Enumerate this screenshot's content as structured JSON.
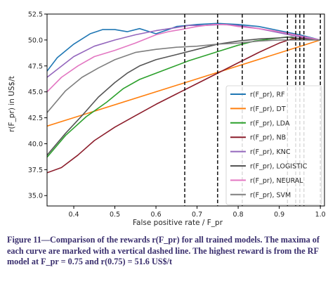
{
  "chart_data": {
    "type": "line",
    "xlabel": "False positive rate / F_pr",
    "ylabel": "r(F_pr) in US$/t",
    "xlim": [
      0.335,
      1.01
    ],
    "ylim": [
      34.0,
      52.5
    ],
    "xticks": [
      0.4,
      0.5,
      0.6,
      0.7,
      0.8,
      0.9,
      1.0
    ],
    "xtick_labels": [
      "0.4",
      "0.5",
      "0.6",
      "0.7",
      "0.8",
      "0.9",
      "1.0"
    ],
    "yticks": [
      35.0,
      37.5,
      40.0,
      42.5,
      45.0,
      47.5,
      50.0,
      52.5
    ],
    "ytick_labels": [
      "35.0",
      "37.5",
      "40.0",
      "42.5",
      "45.0",
      "47.5",
      "50.0",
      "52.5"
    ],
    "legend_position": "bottom-right",
    "grid": false,
    "series": [
      {
        "name": "r(F_pr), RF",
        "color": "#1f77b4",
        "x": [
          0.335,
          0.36,
          0.4,
          0.44,
          0.47,
          0.5,
          0.53,
          0.56,
          0.6,
          0.63,
          0.65,
          0.7,
          0.75,
          0.8,
          0.85,
          0.9,
          0.95,
          1.0
        ],
        "y": [
          47.0,
          48.3,
          49.6,
          50.6,
          51.0,
          51.0,
          50.8,
          51.1,
          50.6,
          51.0,
          51.3,
          51.5,
          51.6,
          51.5,
          51.3,
          50.9,
          50.5,
          50.0
        ]
      },
      {
        "name": "r(F_pr), DT",
        "color": "#ff7f0e",
        "x": [
          0.335,
          1.0
        ],
        "y": [
          41.7,
          50.0
        ]
      },
      {
        "name": "r(F_pr), LDA",
        "color": "#2ca02c",
        "x": [
          0.335,
          0.38,
          0.43,
          0.48,
          0.52,
          0.56,
          0.6,
          0.64,
          0.68,
          0.72,
          0.76,
          0.8,
          0.84,
          0.88,
          0.92,
          0.95,
          1.0
        ],
        "y": [
          38.7,
          40.8,
          42.6,
          44.0,
          45.3,
          46.2,
          46.8,
          47.4,
          48.0,
          48.5,
          49.0,
          49.5,
          49.9,
          50.1,
          50.3,
          50.1,
          50.0
        ]
      },
      {
        "name": "r(F_pr), NB",
        "color": "#8c1d2b",
        "x": [
          0.335,
          0.37,
          0.41,
          0.45,
          0.5,
          0.55,
          0.6,
          0.65,
          0.7,
          0.75,
          0.8,
          0.85,
          0.9,
          0.93,
          0.96,
          1.0
        ],
        "y": [
          37.2,
          37.7,
          38.9,
          40.3,
          41.6,
          42.7,
          43.8,
          44.8,
          45.8,
          46.8,
          47.8,
          48.8,
          49.7,
          50.1,
          50.2,
          50.0
        ]
      },
      {
        "name": "r(F_pr), KNC",
        "color": "#9467bd",
        "x": [
          0.335,
          0.4,
          0.45,
          0.5,
          0.55,
          0.6,
          0.65,
          0.68,
          0.72,
          0.76,
          0.8,
          0.85,
          0.9,
          0.95,
          1.0
        ],
        "y": [
          46.4,
          48.4,
          49.4,
          50.0,
          50.5,
          50.9,
          51.2,
          51.4,
          51.4,
          51.5,
          51.4,
          51.1,
          50.7,
          50.3,
          50.0
        ]
      },
      {
        "name": "r(F_pr), LOGISTIC",
        "color": "#555555",
        "x": [
          0.335,
          0.38,
          0.42,
          0.46,
          0.5,
          0.53,
          0.56,
          0.6,
          0.65,
          0.7,
          0.75,
          0.8,
          0.85,
          0.9,
          0.93,
          0.95,
          1.0
        ],
        "y": [
          38.9,
          41.0,
          42.7,
          44.5,
          45.9,
          46.8,
          47.5,
          48.1,
          48.6,
          49.1,
          49.6,
          49.9,
          50.1,
          50.2,
          50.3,
          50.1,
          50.0
        ]
      },
      {
        "name": "r(F_pr), NEURAL",
        "color": "#e377c2",
        "x": [
          0.335,
          0.37,
          0.41,
          0.45,
          0.5,
          0.55,
          0.6,
          0.63,
          0.66,
          0.7,
          0.74,
          0.77,
          0.8,
          0.85,
          0.9,
          0.95,
          1.0
        ],
        "y": [
          45.0,
          46.4,
          47.5,
          48.4,
          49.0,
          49.7,
          50.5,
          50.8,
          51.0,
          51.3,
          51.5,
          51.5,
          51.3,
          51.1,
          50.8,
          50.4,
          50.0
        ]
      },
      {
        "name": "r(F_pr), SVM",
        "color": "#7f7f7f",
        "x": [
          0.335,
          0.38,
          0.42,
          0.46,
          0.5,
          0.55,
          0.6,
          0.65,
          0.7,
          0.75,
          0.8,
          0.85,
          0.9,
          0.95,
          1.0
        ],
        "y": [
          43.0,
          45.1,
          46.4,
          47.3,
          48.1,
          48.8,
          49.1,
          49.3,
          49.4,
          49.6,
          49.7,
          49.9,
          50.0,
          50.0,
          50.0
        ]
      }
    ],
    "maxima_lines_x": [
      0.67,
      0.75,
      0.81,
      0.92,
      0.94,
      0.95,
      0.96,
      1.0
    ]
  },
  "caption": {
    "text": "Figure 11—Comparison of the rewards r(F_pr) for all trained models. The maxima of each curve are marked with a vertical dashed line. The highest reward is from the RF model at F_pr = 0.75 and r(0.75) = 51.6 US$/t"
  }
}
